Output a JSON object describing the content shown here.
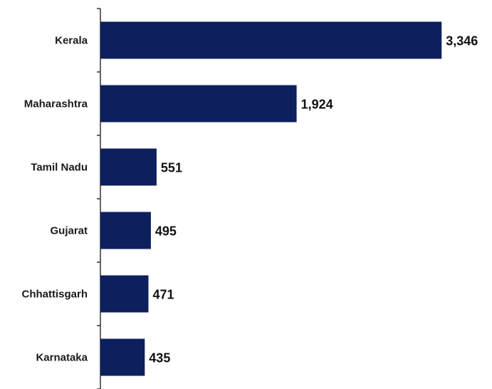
{
  "chart_data": {
    "type": "bar",
    "orientation": "horizontal",
    "categories": [
      "Kerala",
      "Maharashtra",
      "Tamil Nadu",
      "Gujarat",
      "Chhattisgarh",
      "Karnataka"
    ],
    "values": [
      3346,
      1924,
      551,
      495,
      471,
      435
    ],
    "value_labels": [
      "3,346",
      "1,924",
      "551",
      "495",
      "471",
      "435"
    ],
    "bar_color": "#0d1f5c",
    "xlim": [
      0,
      3400
    ],
    "grid": false,
    "legend": "none"
  }
}
